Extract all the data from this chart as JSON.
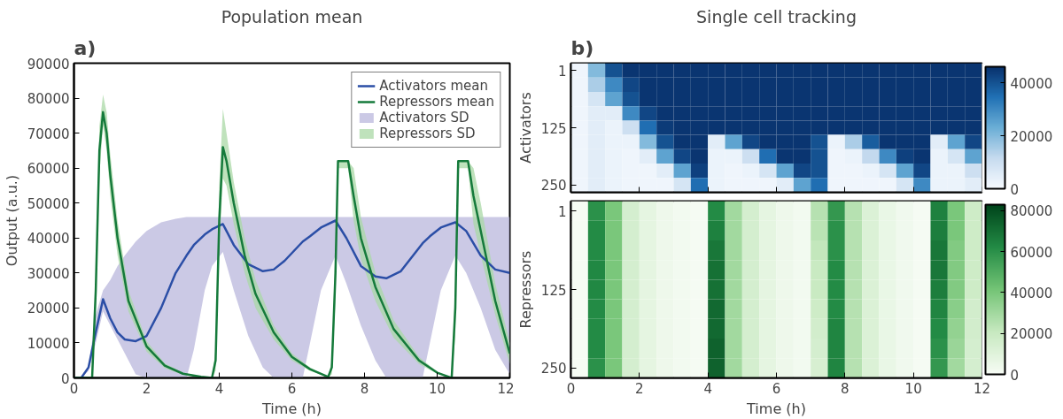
{
  "chart_data": [
    {
      "type": "line",
      "title": "Population mean",
      "xlabel": "Time (h)",
      "ylabel": "Output (a.u.)",
      "annotations": [
        "a)"
      ],
      "xlim": [
        0,
        12
      ],
      "ylim": [
        0,
        90000
      ],
      "xticks": [
        0,
        2,
        4,
        6,
        8,
        10,
        12
      ],
      "yticks": [
        0,
        10000,
        20000,
        30000,
        40000,
        50000,
        60000,
        70000,
        80000,
        90000
      ],
      "legend": "top right",
      "series": [
        {
          "name": "Activators mean",
          "type": "line",
          "color": "#2b4ea6",
          "x": [
            0,
            0.2,
            0.4,
            0.6,
            0.8,
            1.0,
            1.2,
            1.4,
            1.7,
            2.0,
            2.4,
            2.8,
            3.1,
            3.3,
            3.6,
            3.8,
            4.1,
            4.4,
            4.8,
            5.2,
            5.5,
            5.8,
            6.3,
            6.5,
            6.8,
            7.2,
            7.5,
            7.9,
            8.3,
            8.6,
            9.0,
            9.6,
            9.8,
            10.1,
            10.5,
            10.8,
            11.2,
            11.6,
            12.0
          ],
          "values": [
            0,
            0,
            3000,
            13000,
            22500,
            17000,
            13000,
            11000,
            10500,
            12000,
            20000,
            30000,
            35000,
            38000,
            41000,
            42500,
            44000,
            38000,
            32500,
            30500,
            31000,
            33500,
            39000,
            40500,
            43000,
            45000,
            40000,
            32000,
            29000,
            28500,
            30500,
            38500,
            40500,
            43000,
            44500,
            42000,
            35000,
            31000,
            30000
          ],
          "lower": [
            0,
            0,
            2000,
            10000,
            19000,
            15000,
            11000,
            7000,
            1000,
            0,
            0,
            0,
            0,
            8000,
            25000,
            32000,
            36000,
            25000,
            12000,
            3000,
            0,
            0,
            0,
            10000,
            25000,
            35000,
            27000,
            15000,
            5000,
            0,
            0,
            0,
            10000,
            25000,
            35000,
            30000,
            20000,
            8000,
            1000
          ],
          "upper": [
            0,
            0,
            3000,
            18000,
            25000,
            28000,
            32000,
            35000,
            39000,
            42000,
            44500,
            45500,
            46000,
            46000,
            46000,
            46000,
            46000,
            46000,
            46000,
            46000,
            46000,
            46000,
            46000,
            46000,
            46000,
            46000,
            46000,
            46000,
            46000,
            46000,
            46000,
            46000,
            46000,
            46000,
            46000,
            46000,
            46000,
            46000,
            46000
          ]
        },
        {
          "name": "Repressors mean",
          "type": "line",
          "color": "#157a3b",
          "x": [
            0,
            0.5,
            0.6,
            0.7,
            0.8,
            0.9,
            1.0,
            1.2,
            1.5,
            2.0,
            2.5,
            3.0,
            3.5,
            3.8,
            3.9,
            4.0,
            4.1,
            4.2,
            4.4,
            4.7,
            5.0,
            5.5,
            6.0,
            6.5,
            7.0,
            7.1,
            7.2,
            7.27,
            7.55,
            7.7,
            7.9,
            8.3,
            8.8,
            9.5,
            10.0,
            10.4,
            10.5,
            10.58,
            10.85,
            11.0,
            11.2,
            11.6,
            12
          ],
          "values": [
            0,
            0,
            25000,
            65000,
            76000,
            70000,
            58000,
            40000,
            22000,
            9000,
            3500,
            1200,
            300,
            0,
            5000,
            45000,
            66000,
            62000,
            50000,
            35000,
            24000,
            13000,
            6000,
            2500,
            300,
            3000,
            30000,
            62000,
            62000,
            52000,
            40000,
            26000,
            14000,
            5000,
            1500,
            0,
            20000,
            62000,
            62000,
            52000,
            42000,
            22000,
            7000
          ],
          "lower": [
            0,
            0,
            20000,
            58000,
            72000,
            65000,
            52000,
            35000,
            19000,
            7500,
            2800,
            900,
            200,
            0,
            2000,
            36000,
            57000,
            55000,
            44000,
            30000,
            20000,
            11000,
            5000,
            2000,
            200,
            1000,
            22000,
            60000,
            60000,
            45000,
            34000,
            22000,
            11500,
            4000,
            1200,
            0,
            12000,
            60000,
            60000,
            44000,
            35000,
            18000,
            4000
          ],
          "upper": [
            0,
            0,
            30000,
            72000,
            81000,
            76000,
            64000,
            45000,
            25000,
            10500,
            4200,
            1500,
            400,
            0,
            8000,
            55000,
            77000,
            70000,
            56000,
            40000,
            28000,
            15000,
            7000,
            3000,
            400,
            5000,
            38000,
            62000,
            62000,
            60000,
            46000,
            30000,
            16500,
            6000,
            1800,
            0,
            28000,
            62000,
            62000,
            60000,
            50000,
            27000,
            10000
          ]
        },
        {
          "name": "Activators SD",
          "type": "area",
          "color": "#b9b7dc"
        },
        {
          "name": "Repressors SD",
          "type": "area",
          "color": "#a9d8a6"
        }
      ]
    },
    {
      "type": "heatmap",
      "title": "Single cell tracking",
      "ylabel": "Activators",
      "annotations": [
        "b)"
      ],
      "tick_labels": "y",
      "xlim": [
        0,
        12
      ],
      "xticks": [
        0,
        2,
        4,
        6,
        8,
        10,
        12
      ],
      "x": [
        0.25,
        0.75,
        1.25,
        1.75,
        2.25,
        2.75,
        3.25,
        3.75,
        4.25,
        4.75,
        5.25,
        5.75,
        6.25,
        6.75,
        7.25,
        7.75,
        8.25,
        8.75,
        9.25,
        9.75,
        10.25,
        10.75,
        11.25,
        11.75
      ],
      "y_categories": [
        "1",
        null,
        null,
        null,
        "125",
        null,
        null,
        null,
        "250"
      ],
      "colors": [
        "#f7fbff",
        "#c6dbef",
        "#6baed6",
        "#2171b5",
        "#08306b"
      ],
      "clim": [
        0,
        46000
      ],
      "cticks": [
        0,
        20000,
        40000
      ],
      "cells": [
        [
          2000,
          20000,
          40000,
          45000,
          45000,
          45000,
          45000,
          45000,
          45000,
          45000,
          45000,
          45000,
          45000,
          45000,
          45000,
          45000,
          45000,
          45000,
          45000,
          45000,
          45000,
          45000,
          45000,
          45000
        ],
        [
          2000,
          15000,
          30000,
          42000,
          45000,
          45000,
          45000,
          45000,
          45000,
          45000,
          45000,
          45000,
          45000,
          45000,
          45000,
          45000,
          45000,
          45000,
          45000,
          45000,
          45000,
          45000,
          45000,
          45000
        ],
        [
          2000,
          8000,
          25000,
          40000,
          45000,
          45000,
          45000,
          45000,
          45000,
          45000,
          45000,
          45000,
          45000,
          45000,
          45000,
          45000,
          45000,
          45000,
          45000,
          45000,
          45000,
          45000,
          45000,
          45000
        ],
        [
          2000,
          5000,
          5000,
          30000,
          42000,
          45000,
          45000,
          45000,
          45000,
          45000,
          45000,
          45000,
          45000,
          45000,
          45000,
          45000,
          45000,
          45000,
          45000,
          45000,
          45000,
          45000,
          45000,
          45000
        ],
        [
          2000,
          5000,
          3000,
          10000,
          35000,
          44000,
          45000,
          45000,
          45000,
          45000,
          45000,
          45000,
          45000,
          45000,
          45000,
          45000,
          45000,
          45000,
          45000,
          45000,
          45000,
          45000,
          45000,
          45000
        ],
        [
          2000,
          5000,
          3000,
          3000,
          20000,
          40000,
          45000,
          45000,
          5000,
          25000,
          42000,
          45000,
          45000,
          45000,
          40000,
          3000,
          15000,
          38000,
          45000,
          45000,
          45000,
          5000,
          25000,
          42000
        ],
        [
          2000,
          5000,
          3000,
          2000,
          5000,
          25000,
          42000,
          45000,
          3000,
          3000,
          10000,
          35000,
          45000,
          45000,
          40000,
          2000,
          3000,
          12000,
          30000,
          43000,
          45000,
          3000,
          8000,
          25000
        ],
        [
          2000,
          5000,
          3000,
          2000,
          2000,
          5000,
          25000,
          43000,
          3000,
          2000,
          3000,
          8000,
          25000,
          42000,
          40000,
          2000,
          2000,
          3000,
          8000,
          25000,
          42000,
          3000,
          3000,
          10000
        ],
        [
          2000,
          5000,
          3000,
          2000,
          2000,
          2000,
          8000,
          35000,
          3000,
          2000,
          2000,
          2000,
          5000,
          25000,
          35000,
          2000,
          2000,
          2000,
          2000,
          8000,
          30000,
          3000,
          3000,
          5000
        ]
      ]
    },
    {
      "type": "heatmap",
      "xlabel": "Time (h)",
      "ylabel": "Repressors",
      "xlim": [
        0,
        12
      ],
      "xticks": [
        0,
        2,
        4,
        6,
        8,
        10,
        12
      ],
      "x": [
        0.25,
        0.75,
        1.25,
        1.75,
        2.25,
        2.75,
        3.25,
        3.75,
        4.25,
        4.75,
        5.25,
        5.75,
        6.25,
        6.75,
        7.25,
        7.75,
        8.25,
        8.75,
        9.25,
        9.75,
        10.25,
        10.75,
        11.25,
        11.75
      ],
      "y_categories": [
        "1",
        null,
        null,
        null,
        "125",
        null,
        null,
        null,
        "250"
      ],
      "colors": [
        "#f7fcf5",
        "#c7e9c0",
        "#74c476",
        "#238b45",
        "#00441b"
      ],
      "clim": [
        0,
        83000
      ],
      "cticks": [
        0,
        20000,
        40000,
        60000,
        80000
      ],
      "cells": [
        [
          500,
          60000,
          40000,
          15000,
          8000,
          4000,
          2000,
          1000,
          62000,
          30000,
          15000,
          8000,
          4000,
          2000,
          25000,
          58000,
          25000,
          12000,
          6000,
          3000,
          1000,
          65000,
          40000,
          18000
        ],
        [
          500,
          62000,
          40000,
          15000,
          8000,
          4000,
          2000,
          1000,
          65000,
          30000,
          15000,
          8000,
          4000,
          2000,
          24000,
          60000,
          25000,
          12000,
          6000,
          3000,
          1000,
          66000,
          40000,
          18000
        ],
        [
          500,
          62000,
          40000,
          15000,
          8000,
          4000,
          2000,
          1000,
          68000,
          30000,
          15000,
          8000,
          4000,
          2000,
          22000,
          60000,
          25000,
          12000,
          6000,
          3000,
          1000,
          68000,
          38000,
          18000
        ],
        [
          500,
          63000,
          40000,
          15000,
          8000,
          4000,
          2000,
          1000,
          70000,
          30000,
          15000,
          8000,
          4000,
          2000,
          20000,
          62000,
          25000,
          12000,
          6000,
          3000,
          1000,
          68000,
          38000,
          18000
        ],
        [
          500,
          63000,
          40000,
          15000,
          8000,
          4000,
          2000,
          1000,
          70000,
          30000,
          15000,
          8000,
          4000,
          2000,
          20000,
          62000,
          25000,
          12000,
          6000,
          3000,
          1000,
          66000,
          38000,
          18000
        ],
        [
          500,
          62000,
          40000,
          15000,
          8000,
          4000,
          2000,
          1000,
          72000,
          30000,
          15000,
          8000,
          4000,
          2000,
          18000,
          62000,
          25000,
          12000,
          6000,
          3000,
          1000,
          64000,
          36000,
          16000
        ],
        [
          500,
          62000,
          40000,
          15000,
          8000,
          4000,
          2000,
          1000,
          72000,
          30000,
          15000,
          8000,
          4000,
          2000,
          16000,
          64000,
          25000,
          12000,
          6000,
          3000,
          1000,
          62000,
          34000,
          16000
        ],
        [
          500,
          62000,
          40000,
          15000,
          8000,
          4000,
          2000,
          1000,
          74000,
          30000,
          15000,
          8000,
          4000,
          2000,
          15000,
          64000,
          25000,
          12000,
          6000,
          3000,
          1000,
          60000,
          32000,
          15000
        ],
        [
          500,
          60000,
          40000,
          15000,
          8000,
          4000,
          2000,
          1000,
          74000,
          30000,
          15000,
          8000,
          4000,
          2000,
          14000,
          64000,
          25000,
          12000,
          6000,
          3000,
          1000,
          58000,
          30000,
          15000
        ]
      ]
    }
  ]
}
